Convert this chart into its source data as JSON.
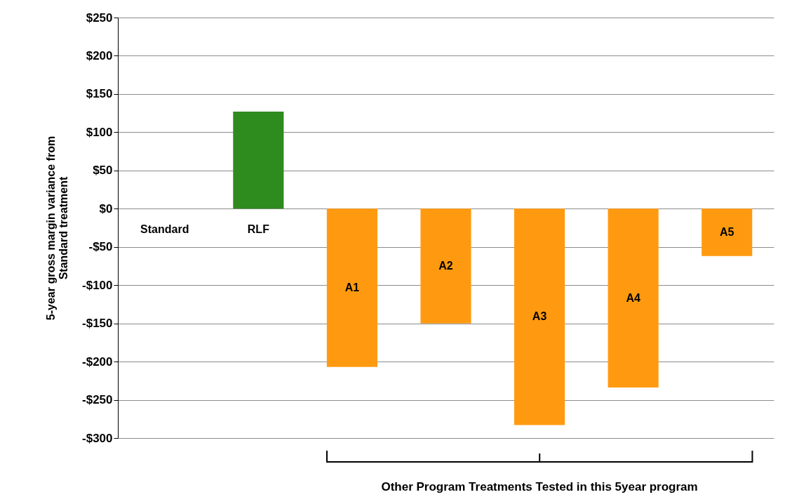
{
  "chart_data": {
    "type": "bar",
    "ylabel": "5-year gross margin variance from\nStandard treatment",
    "categories": [
      "Standard",
      "RLF",
      "A1",
      "A2",
      "A3",
      "A4",
      "A5"
    ],
    "values": [
      0,
      127,
      -207,
      -150,
      -283,
      -234,
      -62
    ],
    "colors": [
      "#2e8b1e",
      "#2e8b1e",
      "#ff9a10",
      "#ff9a10",
      "#ff9a10",
      "#ff9a10",
      "#ff9a10"
    ],
    "ylim": [
      -300,
      250
    ],
    "yticks": [
      {
        "value": 250,
        "label": "$250"
      },
      {
        "value": 200,
        "label": "$200"
      },
      {
        "value": 150,
        "label": "$150"
      },
      {
        "value": 100,
        "label": "$100"
      },
      {
        "value": 50,
        "label": "$50"
      },
      {
        "value": 0,
        "label": "$0"
      },
      {
        "value": -50,
        "label": "-$50"
      },
      {
        "value": -100,
        "label": "-$100"
      },
      {
        "value": -150,
        "label": "-$150"
      },
      {
        "value": -200,
        "label": "-$200"
      },
      {
        "value": -250,
        "label": "-$250"
      },
      {
        "value": -300,
        "label": "-$300"
      }
    ],
    "grid": true,
    "annotations": [
      "Other Program Treatments Tested in this 5year program"
    ]
  }
}
